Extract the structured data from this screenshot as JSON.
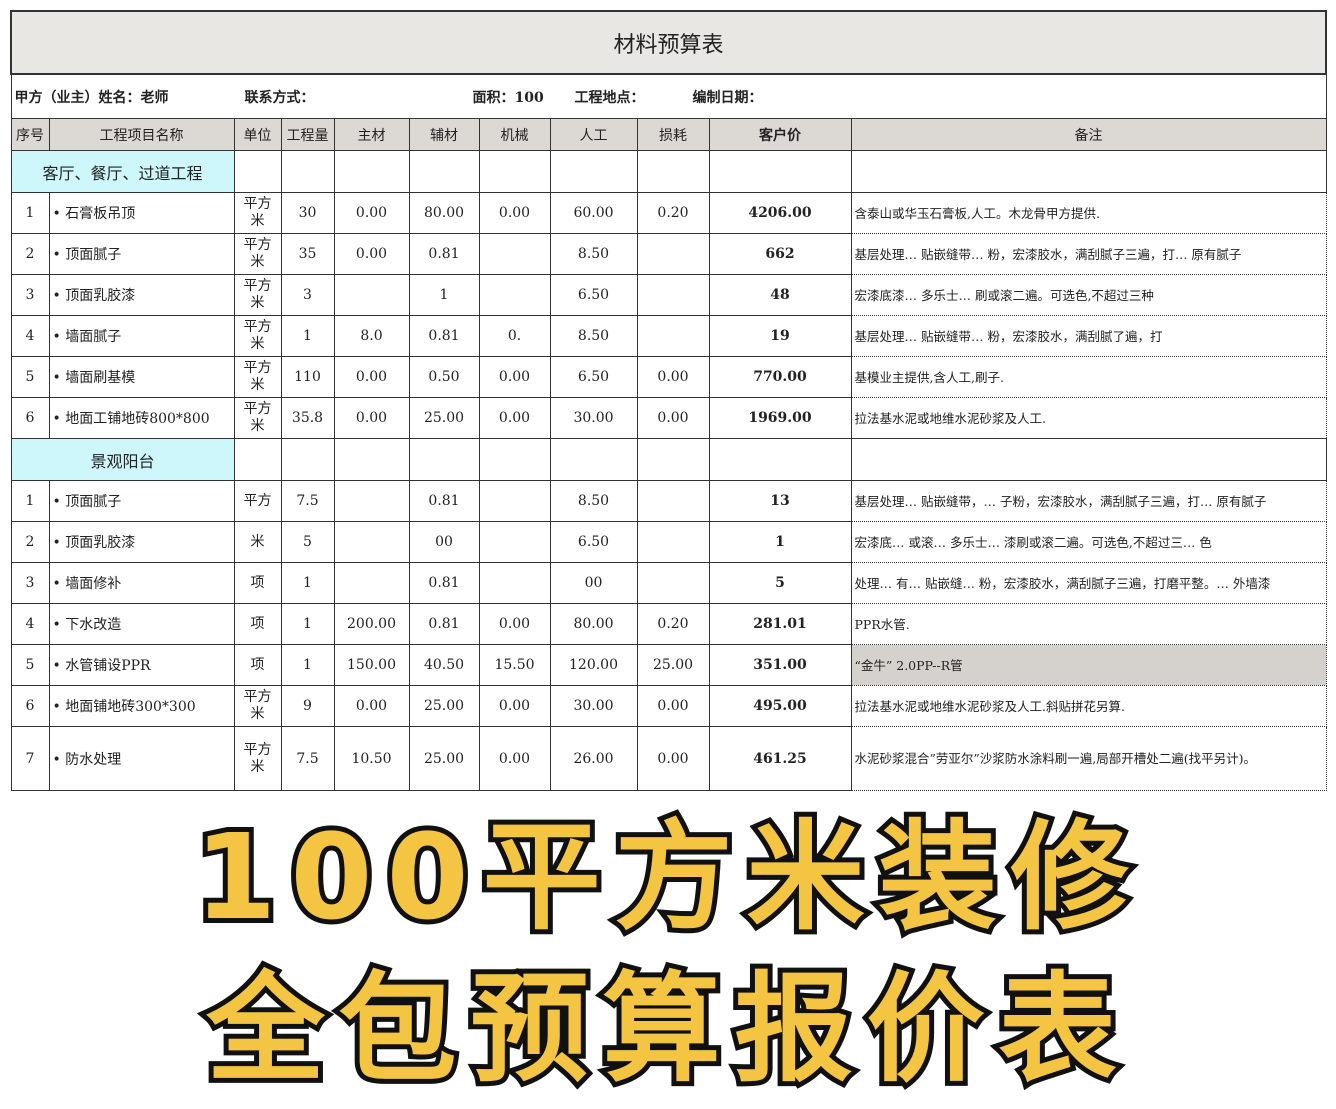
{
  "title": "材料预算表",
  "info": {
    "client": "甲方（业主）姓名：老师",
    "contact": "联系方式：",
    "area": "面积：100",
    "site": "工程地点：",
    "date": "编制日期："
  },
  "headers": [
    "序号",
    "工程项目名称",
    "单位",
    "工程量",
    "主材",
    "辅材",
    "机械",
    "人工",
    "损耗",
    "客户价",
    "备注"
  ],
  "sections": [
    {
      "name": "客厅、餐厅、过道工程",
      "rows": [
        [
          "1",
          "• 石膏板吊顶",
          "平方米",
          "30",
          "0.00",
          "80.00",
          "0.00",
          "60.00",
          "0.20",
          "4206.00",
          "含泰山或华玉石膏板,人工。木龙骨甲方提供."
        ],
        [
          "2",
          "• 顶面腻子",
          "平方米",
          "35",
          "0.00",
          "0.81",
          "",
          "8.50",
          "",
          "662",
          "基层处理… 贴嵌缝带… 粉，宏漆胶水，满刮腻子三遍，打… 原有腻子"
        ],
        [
          "3",
          "• 顶面乳胶漆",
          "平方米",
          "3",
          "",
          "1",
          "",
          "6.50",
          "",
          "48",
          "宏漆底漆… 多乐士… 刷或滚二遍。可选色,不超过三种"
        ],
        [
          "4",
          "• 墙面腻子",
          "平方米",
          "1",
          "8.0",
          "0.81",
          "0.",
          "8.50",
          "",
          "19",
          "基层处理… 贴嵌缝带… 粉，宏漆胶水，满刮腻了遍，打"
        ],
        [
          "5",
          "• 墙面刷基模",
          "平方米",
          "110",
          "0.00",
          "0.50",
          "0.00",
          "6.50",
          "0.00",
          "770.00",
          "基模业主提供,含人工,刷子."
        ],
        [
          "6",
          "• 地面工铺地砖800*800",
          "平方米",
          "35.8",
          "0.00",
          "25.00",
          "0.00",
          "30.00",
          "0.00",
          "1969.00",
          "拉法基水泥或地维水泥砂浆及人工."
        ]
      ]
    },
    {
      "name": "景观阳台",
      "rows": [
        [
          "1",
          "• 顶面腻子",
          "平方",
          "7.5",
          "",
          "0.81",
          "",
          "8.50",
          "",
          "13",
          "基层处理… 贴嵌缝带，… 子粉，宏漆胶水，满刮腻子三遍，打… 原有腻子"
        ],
        [
          "2",
          "• 顶面乳胶漆",
          "米",
          "5",
          "",
          "00",
          "",
          "6.50",
          "",
          "1",
          "宏漆底… 或滚… 多乐士… 漆刷或滚二遍。可选色,不超过三… 色"
        ],
        [
          "3",
          "• 墙面修补",
          "项",
          "1",
          "",
          "0.81",
          "",
          "00",
          "",
          "5",
          "处理… 有… 贴嵌缝… 粉，宏漆胶水，满刮腻子三遍，打磨平整。… 外墙漆"
        ],
        [
          "4",
          "• 下水改造",
          "项",
          "1",
          "200.00",
          "0.81",
          "0.00",
          "80.00",
          "0.20",
          "281.01",
          "PPR水管."
        ],
        [
          "5",
          "• 水管铺设PPR",
          "项",
          "1",
          "150.00",
          "40.50",
          "15.50",
          "120.00",
          "25.00",
          "351.00",
          "“金牛” 2.0PP--R管"
        ],
        [
          "6",
          "• 地面铺地砖300*300",
          "平方米",
          "9",
          "0.00",
          "25.00",
          "0.00",
          "30.00",
          "0.00",
          "495.00",
          "拉法基水泥或地维水泥砂浆及人工.斜贴拼花另算."
        ],
        [
          "7",
          "• 防水处理",
          "平方米",
          "7.5",
          "10.50",
          "25.00",
          "0.00",
          "26.00",
          "0.00",
          "461.25",
          "水泥砂浆混合”劳亚尔”沙浆防水涂料刷一遍,局部开槽处二遍(找平另计)。"
        ]
      ]
    }
  ],
  "overlay": {
    "line1": "100平方米装修",
    "line2": "全包预算报价表"
  },
  "colors": {
    "section": "#cdf7fa",
    "header": "#dcd9d4",
    "overlay_fill": "#f4c542",
    "overlay_stroke": "#111111"
  }
}
